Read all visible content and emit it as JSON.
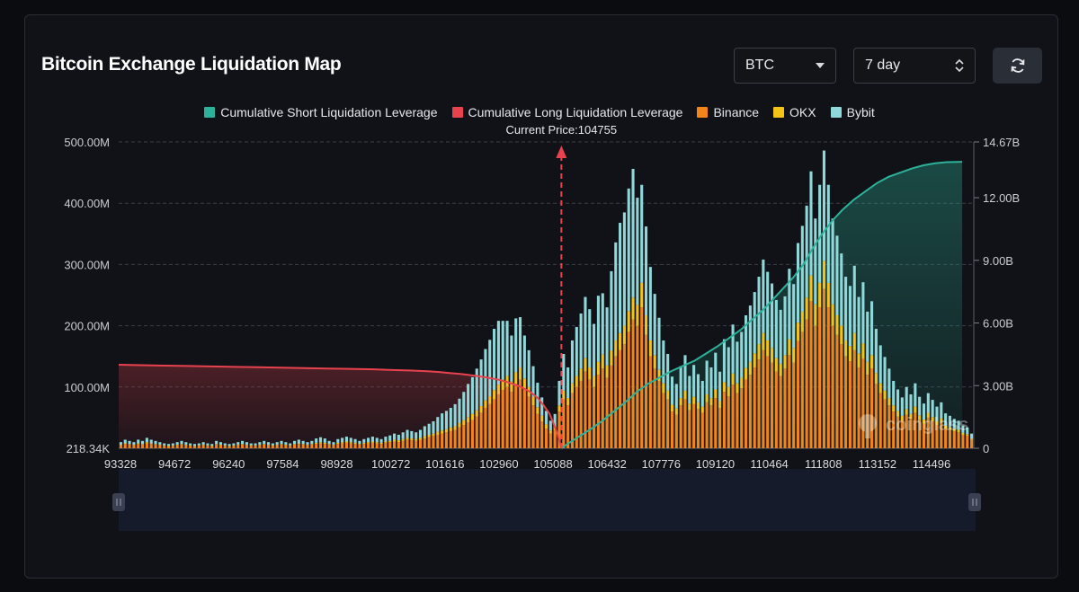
{
  "header": {
    "title": "Bitcoin Exchange Liquidation Map",
    "symbol_select": "BTC",
    "range_select": "7 day"
  },
  "colors": {
    "short_cum": "#2eb19a",
    "long_cum": "#e8424f",
    "binance": "#f2841b",
    "okx": "#f5c318",
    "bybit": "#8fd7d8",
    "background": "#101217"
  },
  "watermark": "coinglass",
  "chart_data": {
    "type": "bar",
    "title": "Bitcoin Exchange Liquidation Map",
    "annotation": "Current Price:104755",
    "current_price": 104755,
    "legend": [
      {
        "name": "Cumulative Short Liquidation Leverage",
        "color": "#2eb19a"
      },
      {
        "name": "Cumulative Long Liquidation Leverage",
        "color": "#e8424f"
      },
      {
        "name": "Binance",
        "color": "#f2841b"
      },
      {
        "name": "OKX",
        "color": "#f5c318"
      },
      {
        "name": "Bybit",
        "color": "#8fd7d8"
      }
    ],
    "x_ticks": [
      "93328",
      "94672",
      "96240",
      "97584",
      "98928",
      "100272",
      "101616",
      "102960",
      "105088",
      "106432",
      "107776",
      "109120",
      "110464",
      "111808",
      "113152",
      "114496"
    ],
    "x_range": [
      93328,
      115400
    ],
    "y_left": {
      "ticks": [
        "218.34K",
        "100.00M",
        "200.00M",
        "300.00M",
        "400.00M",
        "500.00M"
      ],
      "range": [
        0,
        500
      ]
    },
    "y_right": {
      "ticks": [
        "0",
        "3.00B",
        "6.00B",
        "9.00B",
        "12.00B",
        "14.67B"
      ],
      "range": [
        0,
        14.67
      ]
    },
    "series_bars": [
      {
        "name": "Binance",
        "values": [
          5,
          7,
          6,
          5,
          7,
          6,
          8,
          7,
          6,
          5,
          4,
          3,
          4,
          5,
          6,
          5,
          4,
          3,
          4,
          5,
          4,
          3,
          6,
          5,
          4,
          3,
          4,
          5,
          6,
          5,
          4,
          4,
          5,
          6,
          5,
          4,
          5,
          6,
          5,
          4,
          6,
          7,
          6,
          5,
          6,
          7,
          8,
          7,
          6,
          5,
          7,
          8,
          9,
          8,
          7,
          6,
          7,
          8,
          9,
          8,
          7,
          9,
          10,
          11,
          10,
          12,
          14,
          13,
          12,
          14,
          16,
          18,
          20,
          22,
          24,
          26,
          28,
          30,
          34,
          38,
          42,
          46,
          52,
          58,
          66,
          72,
          80,
          88,
          95,
          100,
          92,
          105,
          112,
          96,
          84,
          70,
          56,
          44,
          32,
          24,
          30,
          60,
          80,
          70,
          90,
          100,
          110,
          125,
          112,
          100,
          120,
          130,
          115,
          135,
          150,
          160,
          170,
          190,
          210,
          200,
          230,
          185,
          150,
          130,
          110,
          90,
          80,
          60,
          55,
          70,
          80,
          62,
          72,
          64,
          58,
          75,
          70,
          82,
          66,
          92,
          85,
          104,
          90,
          98,
          112,
          120,
          132,
          145,
          160,
          150,
          140,
          125,
          118,
          130,
          152,
          140,
          175,
          190,
          210,
          240,
          200,
          230,
          260,
          230,
          200,
          185,
          170,
          150,
          142,
          160,
          132,
          146,
          120,
          130,
          105,
          90,
          80,
          70,
          60,
          52,
          45,
          55,
          48,
          58,
          46,
          40,
          50,
          44,
          38,
          42,
          32,
          30,
          28,
          26,
          22,
          20,
          14
        ]
      },
      {
        "name": "OKX",
        "values": [
          1,
          1,
          1,
          1,
          1,
          1,
          2,
          1,
          1,
          1,
          1,
          1,
          1,
          1,
          1,
          1,
          1,
          1,
          1,
          1,
          1,
          1,
          1,
          1,
          1,
          1,
          1,
          1,
          1,
          1,
          1,
          1,
          1,
          1,
          1,
          1,
          1,
          1,
          1,
          1,
          1,
          1,
          1,
          1,
          1,
          2,
          2,
          2,
          1,
          1,
          2,
          2,
          2,
          2,
          2,
          1,
          2,
          2,
          2,
          2,
          2,
          2,
          2,
          3,
          3,
          3,
          3,
          3,
          3,
          3,
          4,
          4,
          4,
          5,
          5,
          5,
          6,
          6,
          7,
          8,
          9,
          10,
          10,
          11,
          12,
          13,
          15,
          16,
          17,
          18,
          17,
          19,
          20,
          18,
          16,
          14,
          11,
          9,
          7,
          5,
          6,
          10,
          14,
          12,
          16,
          18,
          20,
          22,
          20,
          18,
          21,
          23,
          20,
          24,
          26,
          28,
          30,
          34,
          36,
          34,
          40,
          32,
          26,
          22,
          18,
          16,
          14,
          11,
          10,
          12,
          14,
          11,
          12,
          11,
          10,
          13,
          12,
          14,
          11,
          16,
          15,
          18,
          16,
          17,
          19,
          21,
          23,
          25,
          28,
          26,
          24,
          22,
          20,
          22,
          26,
          24,
          30,
          33,
          36,
          42,
          35,
          40,
          46,
          40,
          35,
          32,
          30,
          26,
          25,
          28,
          23,
          25,
          21,
          22,
          18,
          16,
          14,
          12,
          10,
          9,
          8,
          9,
          8,
          10,
          8,
          7,
          8,
          7,
          6,
          7,
          5,
          5,
          4,
          4,
          3,
          3,
          2
        ]
      },
      {
        "name": "Bybit",
        "values": [
          4,
          6,
          5,
          4,
          6,
          5,
          7,
          6,
          5,
          4,
          3,
          3,
          3,
          4,
          5,
          4,
          3,
          3,
          3,
          4,
          3,
          3,
          5,
          4,
          3,
          3,
          3,
          4,
          5,
          4,
          3,
          3,
          4,
          5,
          4,
          3,
          4,
          5,
          4,
          3,
          5,
          6,
          5,
          4,
          5,
          7,
          8,
          7,
          5,
          4,
          6,
          7,
          8,
          7,
          6,
          5,
          6,
          7,
          8,
          7,
          6,
          8,
          9,
          10,
          9,
          11,
          13,
          12,
          11,
          13,
          16,
          18,
          20,
          24,
          28,
          30,
          32,
          36,
          40,
          46,
          54,
          60,
          68,
          76,
          84,
          92,
          100,
          104,
          96,
          90,
          75,
          88,
          82,
          70,
          60,
          50,
          40,
          30,
          22,
          16,
          20,
          40,
          60,
          50,
          70,
          80,
          90,
          100,
          95,
          85,
          108,
          100,
          95,
          130,
          160,
          180,
          185,
          200,
          210,
          175,
          160,
          145,
          120,
          100,
          85,
          70,
          60,
          46,
          40,
          52,
          58,
          45,
          52,
          46,
          42,
          55,
          50,
          60,
          48,
          70,
          65,
          80,
          68,
          75,
          86,
          92,
          100,
          110,
          120,
          112,
          105,
          95,
          88,
          96,
          115,
          104,
          130,
          140,
          150,
          170,
          140,
          160,
          180,
          160,
          140,
          130,
          118,
          104,
          98,
          110,
          92,
          100,
          82,
          88,
          72,
          62,
          55,
          48,
          40,
          35,
          30,
          36,
          32,
          38,
          30,
          26,
          32,
          28,
          24,
          26,
          20,
          18,
          16,
          15,
          12,
          11,
          8
        ]
      }
    ],
    "cumulative_long_B": [
      4.0,
      3.98,
      3.96,
      3.94,
      3.92,
      3.9,
      3.88,
      3.86,
      3.84,
      3.82,
      3.8,
      3.78,
      3.75,
      3.72,
      3.69,
      3.65,
      3.6,
      3.55,
      3.48,
      3.4,
      3.3,
      3.15,
      2.95,
      2.7,
      2.4,
      2.05,
      1.65,
      1.2,
      0.7,
      0.25,
      0.0
    ],
    "cumulative_long_x": [
      93328,
      93900,
      94500,
      95100,
      95700,
      96300,
      96900,
      97500,
      98100,
      98700,
      99300,
      99900,
      100400,
      100900,
      101300,
      101600,
      101900,
      102200,
      102500,
      102800,
      103100,
      103400,
      103700,
      103950,
      104150,
      104300,
      104450,
      104550,
      104650,
      104720,
      104755
    ],
    "cumulative_short_B": [
      0.0,
      0.25,
      0.55,
      0.9,
      1.3,
      1.75,
      2.2,
      2.7,
      3.1,
      3.4,
      3.7,
      3.95,
      4.2,
      4.55,
      4.9,
      5.3,
      5.7,
      6.2,
      6.7,
      7.2,
      7.7,
      8.2,
      8.8,
      9.6,
      10.3,
      10.9,
      11.4,
      11.9,
      12.3,
      12.7,
      13.0,
      13.2,
      13.4,
      13.55,
      13.65,
      13.7,
      13.72
    ],
    "cumulative_short_x": [
      104755,
      104950,
      105200,
      105500,
      105800,
      106100,
      106400,
      106700,
      107000,
      107300,
      107600,
      107900,
      108200,
      108500,
      108800,
      109100,
      109400,
      109700,
      110000,
      110250,
      110500,
      110750,
      111000,
      111250,
      111500,
      111750,
      112000,
      112300,
      112600,
      112900,
      113200,
      113500,
      113800,
      114100,
      114400,
      114700,
      115100
    ]
  }
}
